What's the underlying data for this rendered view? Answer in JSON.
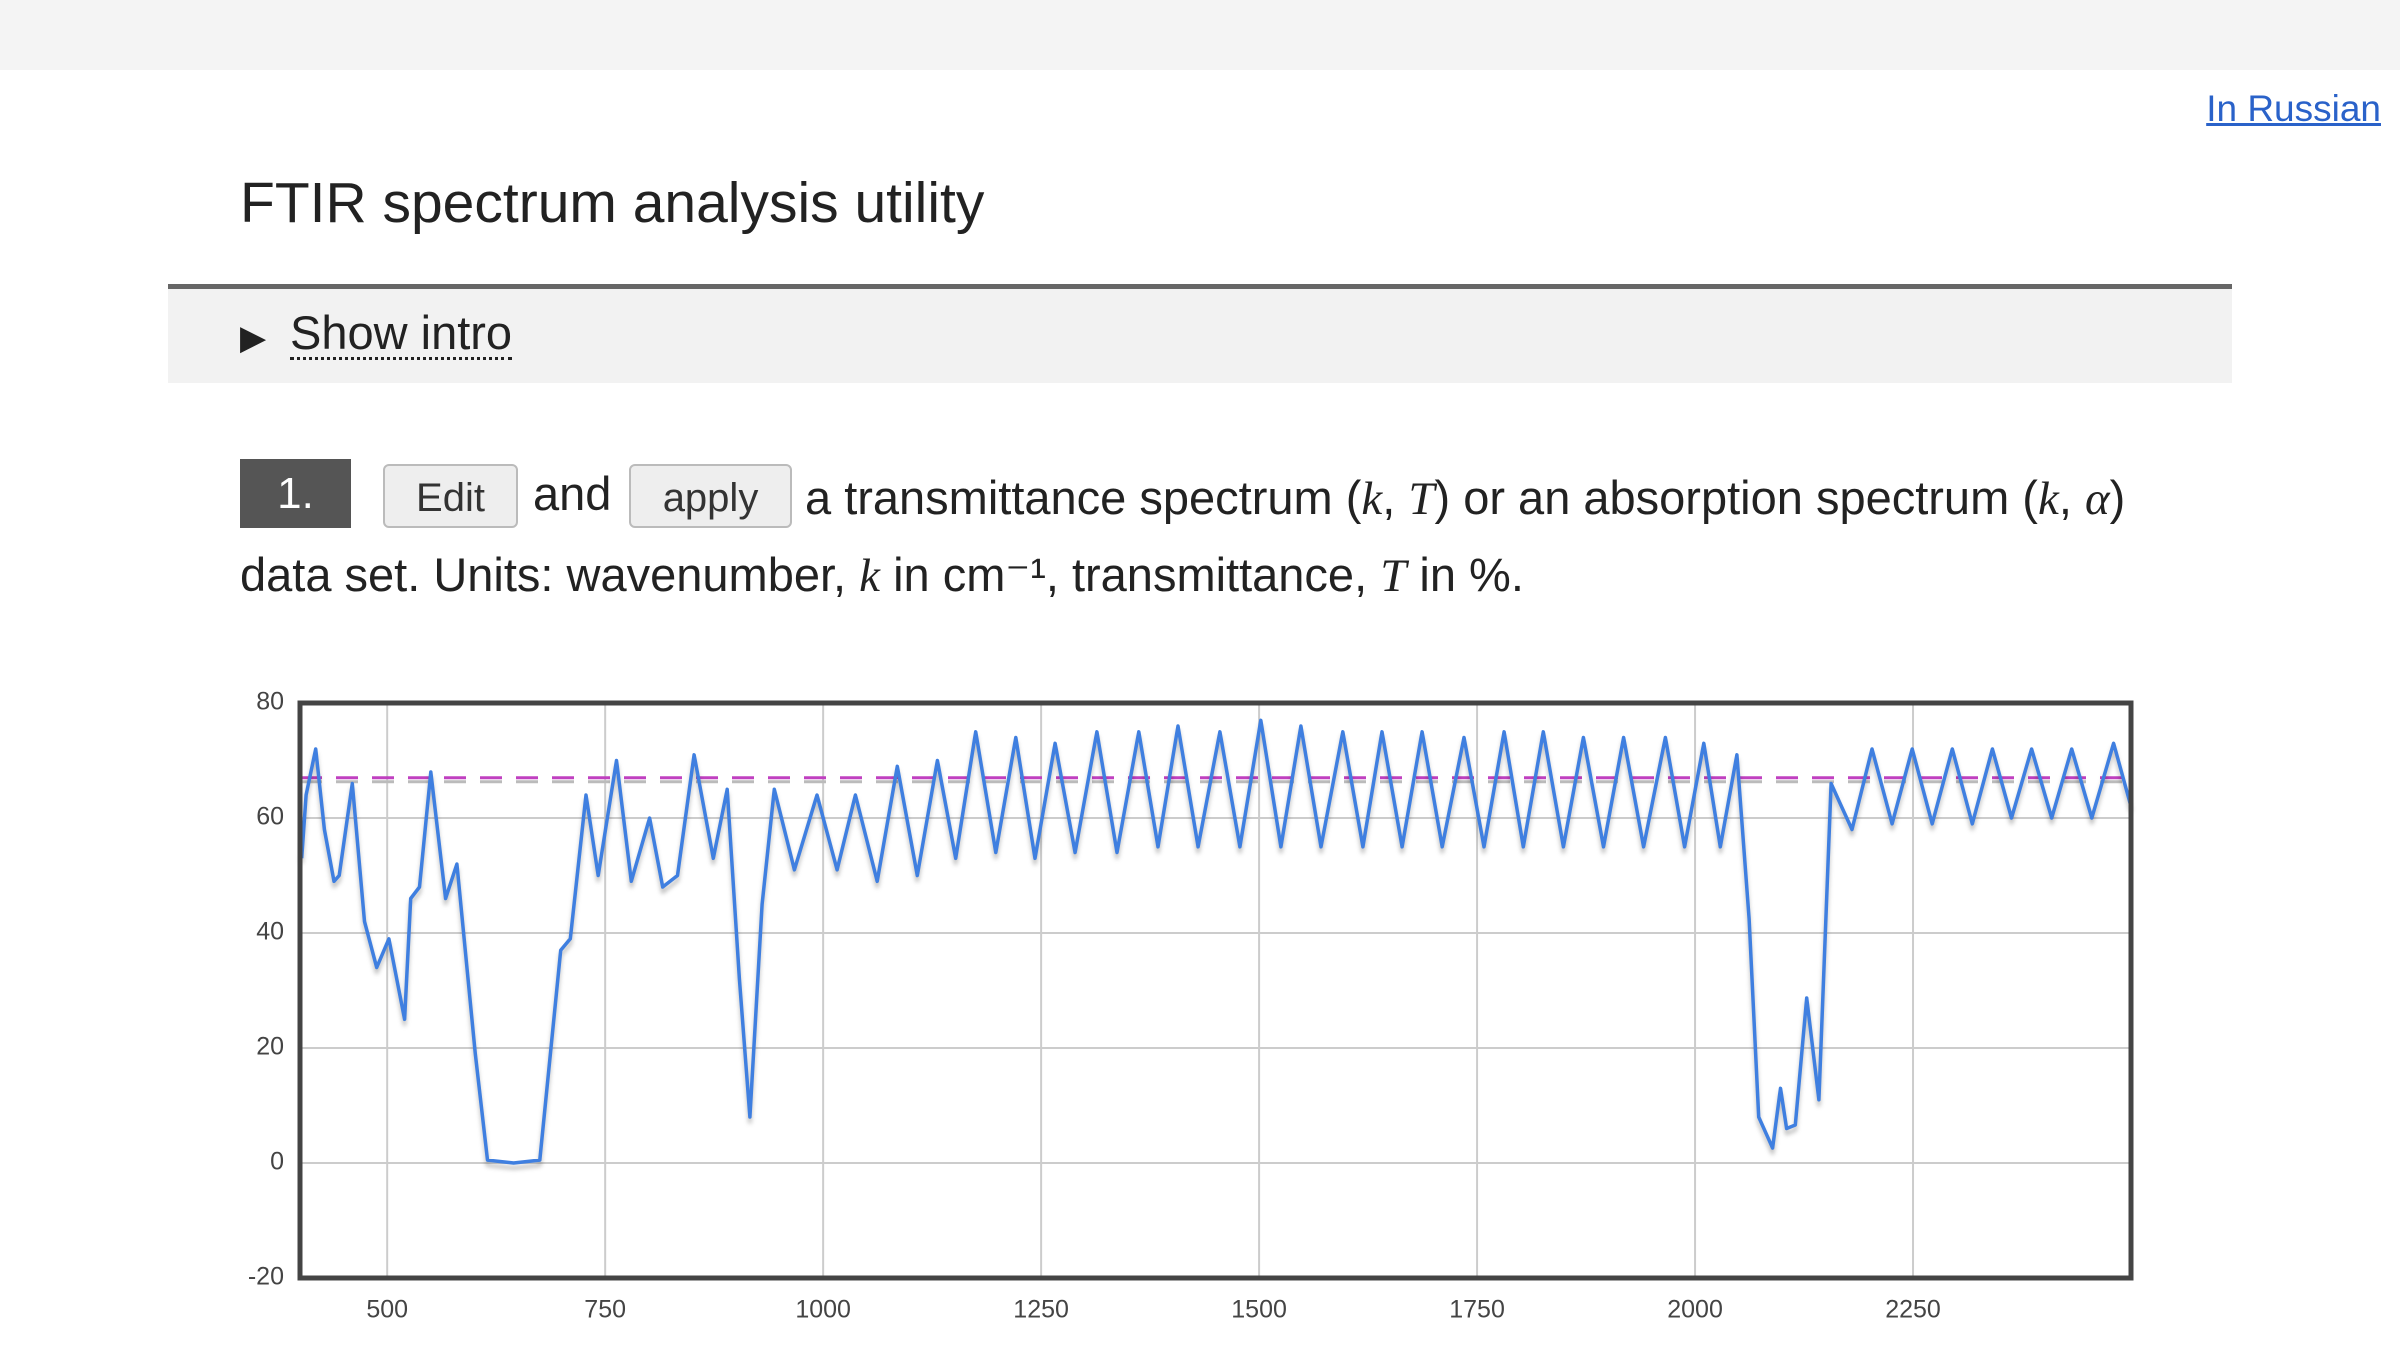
{
  "header": {
    "link": "In Russian",
    "title": "FTIR spectrum analysis utility"
  },
  "intro": {
    "toggle": "Show intro"
  },
  "step": {
    "number": "1.",
    "edit": "Edit",
    "and": "and",
    "apply": "apply",
    "sentence": [
      "a transmittance spectrum (",
      "k",
      ", ",
      "T",
      ") or an absorption spectrum (",
      "k",
      ", ",
      "α",
      ") data set. Units: wavenumber, ",
      "k",
      " in cm⁻¹, transmittance, ",
      "T",
      " in %."
    ]
  },
  "chart_data": {
    "type": "line",
    "x": [
      402,
      407,
      418,
      428,
      439,
      445,
      460,
      474,
      488,
      502,
      520,
      527,
      537,
      550,
      567,
      580,
      601,
      615,
      645,
      675,
      699,
      710,
      728,
      742,
      763,
      780,
      801,
      816,
      833,
      852,
      874,
      890,
      904,
      916,
      930,
      944,
      967,
      993,
      1016,
      1037,
      1062,
      1085,
      1108,
      1131,
      1152,
      1175,
      1198,
      1221,
      1243,
      1266,
      1289,
      1314,
      1337,
      1362,
      1384,
      1407,
      1430,
      1455,
      1478,
      1502,
      1525,
      1548,
      1571,
      1596,
      1619,
      1641,
      1664,
      1687,
      1710,
      1735,
      1758,
      1781,
      1803,
      1826,
      1849,
      1872,
      1895,
      1918,
      1941,
      1966,
      1988,
      2010,
      2029,
      2048,
      2062,
      2073,
      2089,
      2098,
      2105,
      2115,
      2128,
      2142,
      2156,
      2168,
      2180,
      2203,
      2226,
      2249,
      2272,
      2295,
      2318,
      2341,
      2363,
      2386,
      2409,
      2432,
      2455,
      2480,
      2500
    ],
    "series": [
      {
        "color": "#3f7fe0",
        "values": [
          53,
          64,
          72,
          58,
          49,
          50,
          66,
          42,
          34,
          39,
          25,
          46,
          48,
          68,
          46,
          52,
          19,
          0.5,
          0,
          0.5,
          37,
          39,
          64,
          50,
          70,
          49,
          60,
          48,
          50,
          71,
          53,
          65,
          32,
          8,
          45,
          65,
          51,
          64,
          51,
          64,
          49,
          69,
          50,
          70,
          53,
          75,
          54,
          74,
          53,
          73,
          54,
          75,
          54,
          75,
          55,
          76,
          55,
          75,
          55,
          77,
          55,
          76,
          55,
          75,
          55,
          75,
          55,
          75,
          55,
          74,
          55,
          75,
          55,
          75,
          55,
          74,
          55,
          74,
          55,
          74,
          55,
          73,
          55,
          71,
          42.5,
          8,
          2.6,
          13,
          6,
          6.6,
          28.7,
          11,
          66,
          62,
          58,
          72,
          59,
          72,
          59,
          72,
          59,
          72,
          60,
          72,
          60,
          72,
          60,
          73,
          62
        ]
      }
    ],
    "hline": 67,
    "hline_color": "#c040c0",
    "xlim": [
      400,
      2500
    ],
    "xticks": [
      500,
      750,
      1000,
      1250,
      1500,
      1750,
      2000,
      2250
    ],
    "ylim": [
      -20,
      80
    ],
    "yticks": [
      -20,
      0,
      20,
      40,
      60,
      80
    ],
    "grid": true
  }
}
